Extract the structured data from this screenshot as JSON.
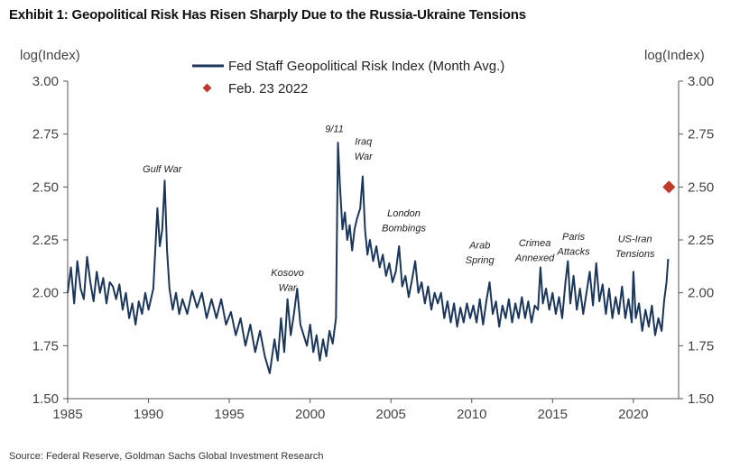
{
  "title": "Exhibit 1: Geopolitical Risk Has Risen Sharply Due to the Russia-Ukraine Tensions",
  "source": "Source: Federal Reserve, Goldman Sachs Global Investment Research",
  "colors": {
    "line": "#1b365d",
    "marker": "#c0392b",
    "axis": "#555555"
  },
  "chart_data": {
    "type": "line",
    "ylabel_left": "log(Index)",
    "ylabel_right": "log(Index)",
    "ylim": [
      1.5,
      3.0
    ],
    "yticks": [
      "3.00",
      "2.75",
      "2.50",
      "2.25",
      "2.00",
      "1.75",
      "1.50"
    ],
    "ytick_values": [
      3.0,
      2.75,
      2.5,
      2.25,
      2.0,
      1.75,
      1.5
    ],
    "xlim": [
      1985,
      2022.8
    ],
    "xticks": [
      "1985",
      "1990",
      "1995",
      "2000",
      "2005",
      "2010",
      "2015",
      "2020"
    ],
    "xtick_values": [
      1985,
      1990,
      2005,
      2010,
      2015,
      2020,
      1995,
      2000
    ],
    "legend": [
      {
        "label": "Fed Staff Geopolitical Risk Index (Month Avg.)",
        "kind": "line"
      },
      {
        "label": "Feb. 23 2022",
        "kind": "diamond"
      }
    ],
    "legend_placement": "top-center",
    "series": [
      {
        "name": "Fed Staff Geopolitical Risk Index (Month Avg.)",
        "points": [
          [
            1985.0,
            2.0
          ],
          [
            1985.2,
            2.12
          ],
          [
            1985.4,
            1.95
          ],
          [
            1985.6,
            2.15
          ],
          [
            1985.8,
            2.02
          ],
          [
            1986.0,
            1.97
          ],
          [
            1986.2,
            2.17
          ],
          [
            1986.4,
            2.05
          ],
          [
            1986.6,
            1.96
          ],
          [
            1986.8,
            2.1
          ],
          [
            1987.0,
            2.0
          ],
          [
            1987.2,
            2.07
          ],
          [
            1987.4,
            1.95
          ],
          [
            1987.6,
            2.05
          ],
          [
            1987.8,
            2.03
          ],
          [
            1988.0,
            1.97
          ],
          [
            1988.2,
            2.04
          ],
          [
            1988.4,
            1.92
          ],
          [
            1988.6,
            2.0
          ],
          [
            1988.8,
            1.88
          ],
          [
            1989.0,
            1.95
          ],
          [
            1989.2,
            1.85
          ],
          [
            1989.4,
            1.96
          ],
          [
            1989.6,
            1.9
          ],
          [
            1989.8,
            2.0
          ],
          [
            1990.0,
            1.92
          ],
          [
            1990.3,
            2.02
          ],
          [
            1990.55,
            2.4
          ],
          [
            1990.7,
            2.22
          ],
          [
            1990.85,
            2.3
          ],
          [
            1991.0,
            2.53
          ],
          [
            1991.15,
            2.2
          ],
          [
            1991.3,
            2.02
          ],
          [
            1991.5,
            1.92
          ],
          [
            1991.7,
            2.0
          ],
          [
            1991.9,
            1.9
          ],
          [
            1992.1,
            1.97
          ],
          [
            1992.4,
            1.9
          ],
          [
            1992.7,
            2.01
          ],
          [
            1993.0,
            1.93
          ],
          [
            1993.3,
            2.0
          ],
          [
            1993.6,
            1.88
          ],
          [
            1993.9,
            1.97
          ],
          [
            1994.2,
            1.88
          ],
          [
            1994.5,
            1.97
          ],
          [
            1994.8,
            1.85
          ],
          [
            1995.1,
            1.91
          ],
          [
            1995.4,
            1.8
          ],
          [
            1995.7,
            1.88
          ],
          [
            1996.0,
            1.75
          ],
          [
            1996.3,
            1.85
          ],
          [
            1996.6,
            1.72
          ],
          [
            1996.9,
            1.82
          ],
          [
            1997.2,
            1.7
          ],
          [
            1997.5,
            1.62
          ],
          [
            1997.8,
            1.78
          ],
          [
            1998.0,
            1.68
          ],
          [
            1998.2,
            1.88
          ],
          [
            1998.4,
            1.72
          ],
          [
            1998.6,
            1.97
          ],
          [
            1998.8,
            1.8
          ],
          [
            1999.0,
            1.9
          ],
          [
            1999.2,
            2.02
          ],
          [
            1999.4,
            1.85
          ],
          [
            1999.6,
            1.8
          ],
          [
            1999.8,
            1.75
          ],
          [
            2000.0,
            1.85
          ],
          [
            2000.2,
            1.72
          ],
          [
            2000.4,
            1.8
          ],
          [
            2000.6,
            1.68
          ],
          [
            2000.8,
            1.78
          ],
          [
            2001.0,
            1.7
          ],
          [
            2001.2,
            1.82
          ],
          [
            2001.4,
            1.76
          ],
          [
            2001.6,
            1.88
          ],
          [
            2001.72,
            2.71
          ],
          [
            2001.85,
            2.5
          ],
          [
            2002.0,
            2.3
          ],
          [
            2002.15,
            2.38
          ],
          [
            2002.3,
            2.25
          ],
          [
            2002.45,
            2.32
          ],
          [
            2002.6,
            2.2
          ],
          [
            2002.75,
            2.3
          ],
          [
            2002.9,
            2.35
          ],
          [
            2003.1,
            2.4
          ],
          [
            2003.25,
            2.55
          ],
          [
            2003.4,
            2.3
          ],
          [
            2003.55,
            2.18
          ],
          [
            2003.7,
            2.25
          ],
          [
            2003.9,
            2.15
          ],
          [
            2004.1,
            2.22
          ],
          [
            2004.3,
            2.12
          ],
          [
            2004.5,
            2.18
          ],
          [
            2004.7,
            2.08
          ],
          [
            2004.9,
            2.14
          ],
          [
            2005.1,
            2.05
          ],
          [
            2005.3,
            2.1
          ],
          [
            2005.5,
            2.22
          ],
          [
            2005.7,
            2.03
          ],
          [
            2005.9,
            2.08
          ],
          [
            2006.1,
            1.98
          ],
          [
            2006.3,
            2.06
          ],
          [
            2006.5,
            2.15
          ],
          [
            2006.7,
            2.0
          ],
          [
            2006.9,
            2.05
          ],
          [
            2007.1,
            1.95
          ],
          [
            2007.3,
            2.03
          ],
          [
            2007.5,
            1.92
          ],
          [
            2007.7,
            2.0
          ],
          [
            2007.9,
            1.95
          ],
          [
            2008.1,
            2.0
          ],
          [
            2008.3,
            1.88
          ],
          [
            2008.5,
            1.96
          ],
          [
            2008.7,
            1.86
          ],
          [
            2008.9,
            1.95
          ],
          [
            2009.1,
            1.84
          ],
          [
            2009.3,
            1.93
          ],
          [
            2009.5,
            1.86
          ],
          [
            2009.7,
            1.95
          ],
          [
            2009.9,
            1.88
          ],
          [
            2010.1,
            1.94
          ],
          [
            2010.3,
            1.86
          ],
          [
            2010.5,
            1.97
          ],
          [
            2010.7,
            1.85
          ],
          [
            2010.9,
            1.96
          ],
          [
            2011.1,
            2.05
          ],
          [
            2011.3,
            1.9
          ],
          [
            2011.5,
            1.96
          ],
          [
            2011.7,
            1.84
          ],
          [
            2011.9,
            1.94
          ],
          [
            2012.1,
            1.88
          ],
          [
            2012.3,
            1.97
          ],
          [
            2012.5,
            1.86
          ],
          [
            2012.7,
            1.95
          ],
          [
            2012.9,
            1.88
          ],
          [
            2013.1,
            1.98
          ],
          [
            2013.3,
            1.88
          ],
          [
            2013.5,
            1.96
          ],
          [
            2013.7,
            1.86
          ],
          [
            2013.9,
            1.94
          ],
          [
            2014.1,
            1.92
          ],
          [
            2014.25,
            2.12
          ],
          [
            2014.4,
            1.95
          ],
          [
            2014.6,
            2.02
          ],
          [
            2014.8,
            1.92
          ],
          [
            2015.0,
            2.0
          ],
          [
            2015.2,
            1.9
          ],
          [
            2015.4,
            1.98
          ],
          [
            2015.6,
            1.88
          ],
          [
            2015.8,
            2.05
          ],
          [
            2015.95,
            2.15
          ],
          [
            2016.1,
            1.95
          ],
          [
            2016.3,
            2.08
          ],
          [
            2016.5,
            1.92
          ],
          [
            2016.7,
            2.02
          ],
          [
            2016.9,
            1.9
          ],
          [
            2017.1,
            2.0
          ],
          [
            2017.3,
            2.1
          ],
          [
            2017.5,
            1.94
          ],
          [
            2017.7,
            2.14
          ],
          [
            2017.9,
            1.96
          ],
          [
            2018.1,
            2.04
          ],
          [
            2018.3,
            1.9
          ],
          [
            2018.5,
            2.02
          ],
          [
            2018.7,
            1.88
          ],
          [
            2018.9,
            1.98
          ],
          [
            2019.1,
            1.9
          ],
          [
            2019.3,
            2.03
          ],
          [
            2019.5,
            1.88
          ],
          [
            2019.7,
            1.97
          ],
          [
            2019.9,
            1.86
          ],
          [
            2020.0,
            2.1
          ],
          [
            2020.15,
            1.88
          ],
          [
            2020.35,
            1.95
          ],
          [
            2020.55,
            1.82
          ],
          [
            2020.75,
            1.92
          ],
          [
            2020.95,
            1.84
          ],
          [
            2021.15,
            1.94
          ],
          [
            2021.35,
            1.8
          ],
          [
            2021.55,
            1.88
          ],
          [
            2021.75,
            1.82
          ],
          [
            2021.9,
            1.96
          ],
          [
            2022.05,
            2.05
          ],
          [
            2022.15,
            2.16
          ]
        ]
      }
    ],
    "marker": {
      "label": "Feb. 23 2022",
      "x": 2022.2,
      "y": 2.5
    },
    "annotations": [
      {
        "text": "Gulf War",
        "x": 1990.85,
        "y": 2.57
      },
      {
        "text": "9/11",
        "x": 2001.5,
        "y": 2.76
      },
      {
        "text": "Iraq",
        "x": 2003.3,
        "y": 2.7
      },
      {
        "text": "War",
        "x": 2003.3,
        "y": 2.63
      },
      {
        "text": "Kosovo",
        "x": 1998.6,
        "y": 2.08
      },
      {
        "text": "War",
        "x": 1998.6,
        "y": 2.01
      },
      {
        "text": "London",
        "x": 2005.8,
        "y": 2.36
      },
      {
        "text": "Bombings",
        "x": 2005.8,
        "y": 2.29
      },
      {
        "text": "Arab",
        "x": 2010.5,
        "y": 2.21
      },
      {
        "text": "Spring",
        "x": 2010.5,
        "y": 2.14
      },
      {
        "text": "Crimea",
        "x": 2013.9,
        "y": 2.22
      },
      {
        "text": "Annexed",
        "x": 2013.9,
        "y": 2.15
      },
      {
        "text": "Paris",
        "x": 2016.3,
        "y": 2.25
      },
      {
        "text": "Attacks",
        "x": 2016.3,
        "y": 2.18
      },
      {
        "text": "US-Iran",
        "x": 2020.1,
        "y": 2.24
      },
      {
        "text": "Tensions",
        "x": 2020.1,
        "y": 2.17
      }
    ]
  }
}
